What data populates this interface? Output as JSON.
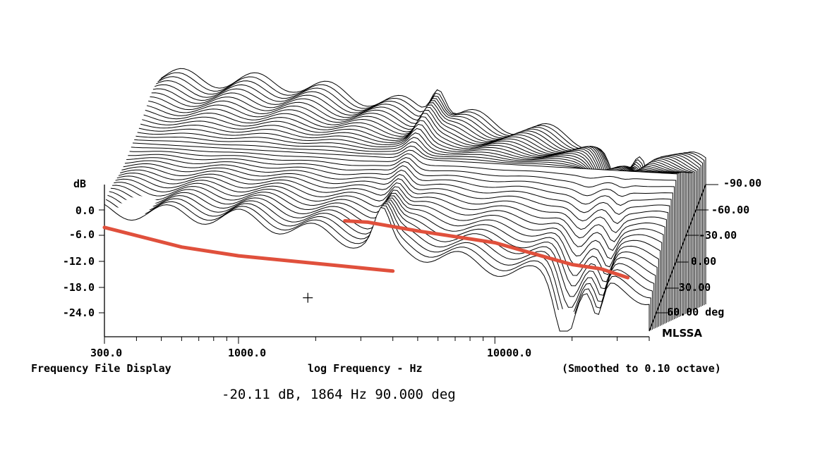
{
  "chart_data": {
    "type": "line",
    "style": "3D waterfall of stacked frequency-response curves, one curve per off-axis angle",
    "xscale": "log",
    "xlim": [
      300,
      40000
    ],
    "ylim": [
      -30,
      4
    ],
    "y_unit": "dB",
    "y_ticks": [
      "0.0",
      "-6.0",
      "-12.0",
      "-18.0",
      "-24.0"
    ],
    "x_ticks": [
      "300.0",
      "1000.0",
      "10000.0"
    ],
    "angle_axis_ticks": [
      "-90.00",
      "-60.00",
      "-30.00",
      "0.00",
      "30.00",
      "60.00 deg"
    ],
    "angle_range_deg": [
      -90,
      90
    ],
    "angle_step_deg": 5,
    "grid": false,
    "line_color": "#000000",
    "overlay_color": "#e0503c",
    "cursor": {
      "db": -20.11,
      "hz": 1864,
      "angle_deg": 90.0
    },
    "overlay_lines": [
      {
        "points": [
          [
            300,
            -4.0
          ],
          [
            600,
            -8.5
          ],
          [
            1000,
            -10.5
          ],
          [
            2500,
            -12.8
          ],
          [
            4000,
            -14.0
          ]
        ]
      },
      {
        "points": [
          [
            2600,
            -2.5
          ],
          [
            3200,
            -2.8
          ],
          [
            5000,
            -4.8
          ],
          [
            10000,
            -7.5
          ],
          [
            20000,
            -12.5
          ],
          [
            26000,
            -13.5
          ],
          [
            33000,
            -15.5
          ]
        ]
      }
    ]
  },
  "labels": {
    "db_axis": "dB",
    "x_axis": "log Frequency - Hz",
    "left_footer": "Frequency File Display",
    "right_footer": "(Smoothed to 0.10 octave)",
    "brand": "MLSSA",
    "readout": "-20.11 dB, 1864 Hz 90.000 deg"
  }
}
